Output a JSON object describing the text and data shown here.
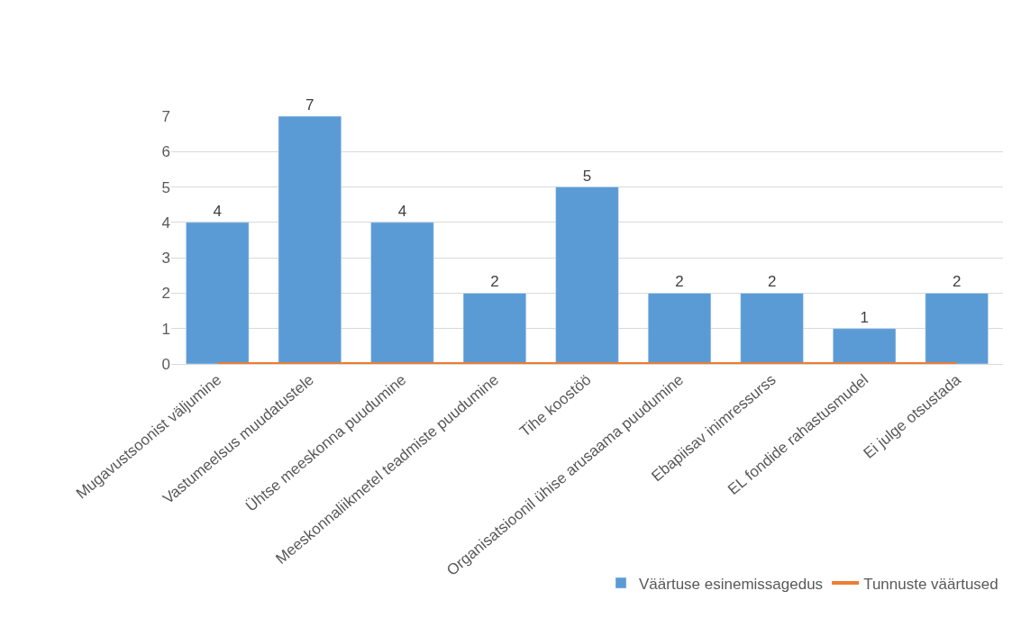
{
  "chart_data": {
    "type": "bar",
    "categories": [
      "Mugavustsoonist väljumine",
      "Vastumeelsus muudatustele",
      "Ühtse meeskonna puudumine",
      "Meeskonnaliikmetel teadmiste puudumine",
      "Tihe koostöö",
      "Organisatsioonil ühise arusaama puudumine",
      "Ebapiisav inimressurss",
      "EL fondide rahastusmudel",
      "Ei julge otsustada"
    ],
    "series": [
      {
        "name": "Väärtuse esinemissagedus",
        "color": "#5b9bd5",
        "values": [
          4,
          7,
          4,
          2,
          5,
          2,
          2,
          1,
          2
        ],
        "data_labels": true
      },
      {
        "name": "Tunnuste väärtused",
        "type": "line",
        "color": "#ed7d31",
        "values": [
          0,
          0,
          0,
          0,
          0,
          0,
          0,
          0,
          0
        ]
      }
    ],
    "ylim": [
      0,
      7
    ],
    "yticks": [
      0,
      1,
      2,
      3,
      4,
      5,
      6,
      7
    ],
    "grid": "y",
    "legend": "bottom right",
    "marker": "none"
  }
}
